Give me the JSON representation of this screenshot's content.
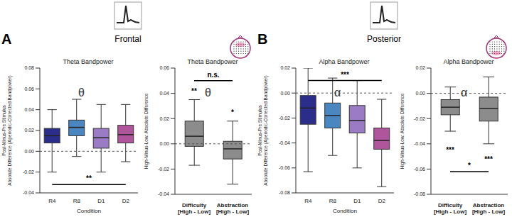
{
  "headers": [
    {
      "panel": "A",
      "region": "Frontal"
    },
    {
      "panel": "B",
      "region": "Posterior"
    }
  ],
  "chart_data": [
    {
      "type": "box",
      "title": "Theta Bandpower",
      "ylabel": [
        "Post-Minus-Pre Stimulus",
        "Absolute Difference (Aperiodic-Corrected Bandpower)"
      ],
      "xlabel": "Condition",
      "symbol": "θ",
      "categories": [
        "R4",
        "R8",
        "D1",
        "D2"
      ],
      "colors": [
        "#2b2d8a",
        "#4a86c0",
        "#9b7bc4",
        "#b0559c"
      ],
      "boxes": [
        {
          "min": -0.02,
          "q1": 0.008,
          "median": 0.015,
          "q3": 0.022,
          "max": 0.04
        },
        {
          "min": -0.005,
          "q1": 0.015,
          "median": 0.023,
          "q3": 0.03,
          "max": 0.05
        },
        {
          "min": -0.02,
          "q1": 0.003,
          "median": 0.013,
          "q3": 0.022,
          "max": 0.045
        },
        {
          "min": -0.01,
          "q1": 0.008,
          "median": 0.016,
          "q3": 0.025,
          "max": 0.045
        }
      ],
      "ylim": [
        -0.04,
        0.08
      ],
      "yticks": [
        -0.04,
        -0.02,
        {
          "value": 0,
          "label": "0.00"
        },
        0.02,
        0.04,
        0.06,
        0.08
      ],
      "annotations": [
        {
          "from": "R4",
          "to": "D2",
          "y": -0.032,
          "label": "**"
        }
      ]
    },
    {
      "type": "box",
      "title": "Theta Bandpower",
      "ylabel": [
        "High-Minus-Low: Absolute Difference"
      ],
      "symbol": "θ",
      "categories": [
        "Difficulty\n[High - Low]",
        "Abstraction\n[High - Low]"
      ],
      "colors": [
        "#8c8c8c",
        "#8c8c8c"
      ],
      "boxes": [
        {
          "min": -0.017,
          "q1": -0.002,
          "median": 0.006,
          "q3": 0.018,
          "max": 0.035
        },
        {
          "min": -0.032,
          "q1": -0.012,
          "median": -0.004,
          "q3": 0.002,
          "max": 0.018
        }
      ],
      "ylim": [
        -0.04,
        0.06
      ],
      "yticks": [
        -0.04,
        -0.02,
        {
          "value": 0,
          "label": "0.00"
        },
        0.02,
        0.04,
        0.06
      ],
      "annotations": [
        {
          "from": "Difficulty\n[High - Low]",
          "to": "Difficulty\n[High - Low]",
          "y": 0.042,
          "label": "**"
        },
        {
          "from": "Abstraction\n[High - Low]",
          "to": "Abstraction\n[High - Low]",
          "y": 0.025,
          "label": "*"
        },
        {
          "from": "Difficulty\n[High - Low]",
          "to": "Abstraction\n[High - Low]",
          "y": 0.05,
          "label": "n.s."
        }
      ]
    },
    {
      "type": "box",
      "title": "Alpha Bandpower",
      "ylabel": [
        "Post-Minus-Pre Stimulus",
        "Absolute Difference (Aperiodic-Corrected Bandpower)"
      ],
      "xlabel": "Condition",
      "symbol": "α",
      "categories": [
        "R4",
        "R8",
        "D1",
        "D2"
      ],
      "colors": [
        "#2b2d8a",
        "#4a86c0",
        "#9b7bc4",
        "#b0559c"
      ],
      "boxes": [
        {
          "min": -0.063,
          "q1": -0.025,
          "median": -0.012,
          "q3": -0.002,
          "max": 0.02
        },
        {
          "min": -0.05,
          "q1": -0.028,
          "median": -0.018,
          "q3": -0.008,
          "max": 0.012
        },
        {
          "min": -0.06,
          "q1": -0.032,
          "median": -0.022,
          "q3": -0.01,
          "max": 0.01
        },
        {
          "min": -0.075,
          "q1": -0.045,
          "median": -0.038,
          "q3": -0.028,
          "max": -0.005
        }
      ],
      "ylim": [
        -0.08,
        0.02
      ],
      "yticks": [
        -0.08,
        -0.06,
        -0.04,
        -0.02,
        {
          "value": 0,
          "label": "0.00"
        },
        0.02
      ],
      "annotations": [
        {
          "from": "R4",
          "to": "D2",
          "y": 0.01,
          "label": "***"
        }
      ]
    },
    {
      "type": "box",
      "title": "Alpha Bandpower",
      "ylabel": [
        "High-Minus-Low: Absolute Difference"
      ],
      "symbol": "α",
      "categories": [
        "Difficulty\n[High - Low]",
        "Abstraction\n[High - Low]"
      ],
      "colors": [
        "#8c8c8c",
        "#8c8c8c"
      ],
      "boxes": [
        {
          "min": -0.03,
          "q1": -0.017,
          "median": -0.011,
          "q3": -0.005,
          "max": 0.005
        },
        {
          "min": -0.04,
          "q1": -0.022,
          "median": -0.012,
          "q3": -0.003,
          "max": 0.013
        }
      ],
      "ylim": [
        -0.08,
        0.02
      ],
      "yticks": [
        -0.08,
        -0.06,
        -0.04,
        -0.02,
        {
          "value": 0,
          "label": "0.00"
        },
        0.02
      ],
      "annotations": [
        {
          "from": "Difficulty\n[High - Low]",
          "to": "Difficulty\n[High - Low]",
          "y": -0.045,
          "label": "***"
        },
        {
          "from": "Abstraction\n[High - Low]",
          "to": "Abstraction\n[High - Low]",
          "y": -0.052,
          "label": "***"
        },
        {
          "from": "Difficulty\n[High - Low]",
          "to": "Abstraction\n[High - Low]",
          "y": -0.062,
          "label": "*"
        }
      ]
    }
  ]
}
